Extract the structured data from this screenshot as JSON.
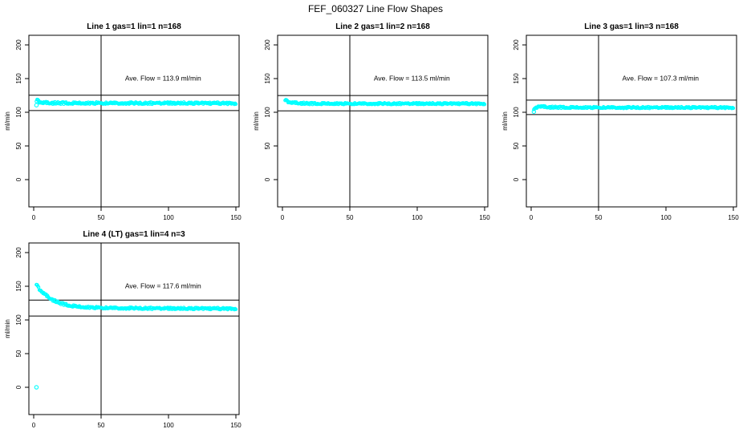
{
  "page_title": "FEF_060327  Line Flow Shapes",
  "accent_color": "#00FFFF",
  "axis_color": "#000000",
  "background_color": "#FFFFFF",
  "chart_data": [
    {
      "type": "scatter",
      "title": "Line 1 gas=1 lin=1 n=168",
      "annotation": "Ave. Flow =  113.9  ml/min",
      "ave_flow_ml_min": 113.9,
      "ylabel": "ml/min",
      "xlim": [
        0,
        150
      ],
      "ylim": [
        0,
        200
      ],
      "xticks": [
        0,
        50,
        100,
        150
      ],
      "yticks": [
        0,
        50,
        100,
        150,
        200
      ],
      "vline_x": 50,
      "hlines": [
        125.3,
        102.5
      ],
      "spread": 1.5,
      "x_range": [
        2,
        150
      ],
      "centerline": [
        [
          2,
          114.0
        ],
        [
          2.5,
          116.2
        ],
        [
          3,
          116.8
        ],
        [
          4,
          116.3
        ],
        [
          5,
          115.7
        ],
        [
          6,
          115.2
        ],
        [
          8,
          114.6
        ],
        [
          10,
          114.2
        ],
        [
          14,
          113.9
        ],
        [
          20,
          113.7
        ],
        [
          30,
          113.6
        ],
        [
          50,
          113.6
        ],
        [
          80,
          113.5
        ],
        [
          110,
          113.5
        ],
        [
          150,
          113.4
        ]
      ],
      "outliers": [
        [
          2,
          110.5
        ]
      ]
    },
    {
      "type": "scatter",
      "title": "Line 2 gas=1 lin=2 n=168",
      "annotation": "Ave. Flow =  113.5  ml/min",
      "ave_flow_ml_min": 113.5,
      "ylabel": "ml/min",
      "xlim": [
        0,
        150
      ],
      "ylim": [
        0,
        200
      ],
      "xticks": [
        0,
        50,
        100,
        150
      ],
      "yticks": [
        0,
        50,
        100,
        150,
        200
      ],
      "vline_x": 50,
      "hlines": [
        124.9,
        102.2
      ],
      "spread": 1.2,
      "x_range": [
        2,
        150
      ],
      "centerline": [
        [
          2,
          116.0
        ],
        [
          3,
          116.8
        ],
        [
          4,
          116.2
        ],
        [
          6,
          115.3
        ],
        [
          8,
          114.6
        ],
        [
          10,
          114.1
        ],
        [
          13,
          113.6
        ],
        [
          17,
          113.2
        ],
        [
          22,
          113.0
        ],
        [
          30,
          112.9
        ],
        [
          50,
          112.8
        ],
        [
          100,
          112.8
        ],
        [
          150,
          112.8
        ]
      ],
      "outliers": []
    },
    {
      "type": "scatter",
      "title": "Line 3 gas=1 lin=3 n=168",
      "annotation": "Ave. Flow =  107.3  ml/min",
      "ave_flow_ml_min": 107.3,
      "ylabel": "ml/min",
      "xlim": [
        0,
        150
      ],
      "ylim": [
        0,
        200
      ],
      "xticks": [
        0,
        50,
        100,
        150
      ],
      "yticks": [
        0,
        50,
        100,
        150,
        200
      ],
      "vline_x": 50,
      "hlines": [
        118.0,
        96.6
      ],
      "spread": 1.2,
      "x_range": [
        2,
        150
      ],
      "centerline": [
        [
          2,
          102.5
        ],
        [
          3,
          104.5
        ],
        [
          4,
          107.5
        ],
        [
          5,
          109.3
        ],
        [
          6,
          109.6
        ],
        [
          8,
          108.8
        ],
        [
          10,
          108.2
        ],
        [
          13,
          107.7
        ],
        [
          18,
          107.4
        ],
        [
          25,
          107.2
        ],
        [
          40,
          107.1
        ],
        [
          70,
          107.0
        ],
        [
          110,
          107.0
        ],
        [
          150,
          107.0
        ]
      ],
      "outliers": [
        [
          2,
          100.8
        ]
      ]
    },
    {
      "type": "scatter",
      "title": "Line 4 (LT) gas=1 lin=4 n=3",
      "annotation": "Ave. Flow =  117.6  ml/min",
      "ave_flow_ml_min": 117.6,
      "ylabel": "ml/min",
      "xlim": [
        0,
        150
      ],
      "ylim": [
        0,
        200
      ],
      "xticks": [
        0,
        50,
        100,
        150
      ],
      "yticks": [
        0,
        50,
        100,
        150,
        200
      ],
      "vline_x": 50,
      "hlines": [
        129.4,
        105.8
      ],
      "spread": 1.4,
      "x_range": [
        2,
        150
      ],
      "centerline": [
        [
          2,
          150.5
        ],
        [
          3,
          148.8
        ],
        [
          4,
          146.8
        ],
        [
          5,
          144.8
        ],
        [
          6,
          142.8
        ],
        [
          7,
          140.9
        ],
        [
          8,
          139.0
        ],
        [
          9,
          137.2
        ],
        [
          10,
          135.5
        ],
        [
          11,
          134.0
        ],
        [
          12,
          132.6
        ],
        [
          13,
          131.3
        ],
        [
          14,
          130.1
        ],
        [
          15,
          129.0
        ],
        [
          16,
          128.0
        ],
        [
          17,
          127.1
        ],
        [
          18,
          126.3
        ],
        [
          19,
          125.5
        ],
        [
          20,
          124.8
        ],
        [
          22,
          123.6
        ],
        [
          24,
          122.6
        ],
        [
          26,
          121.8
        ],
        [
          28,
          121.1
        ],
        [
          30,
          120.5
        ],
        [
          33,
          119.8
        ],
        [
          36,
          119.3
        ],
        [
          40,
          118.8
        ],
        [
          45,
          118.4
        ],
        [
          50,
          118.1
        ],
        [
          60,
          117.7
        ],
        [
          75,
          117.4
        ],
        [
          90,
          117.2
        ],
        [
          110,
          117.0
        ],
        [
          130,
          116.9
        ],
        [
          150,
          116.8
        ]
      ],
      "outliers": [
        [
          2,
          0
        ]
      ]
    }
  ]
}
